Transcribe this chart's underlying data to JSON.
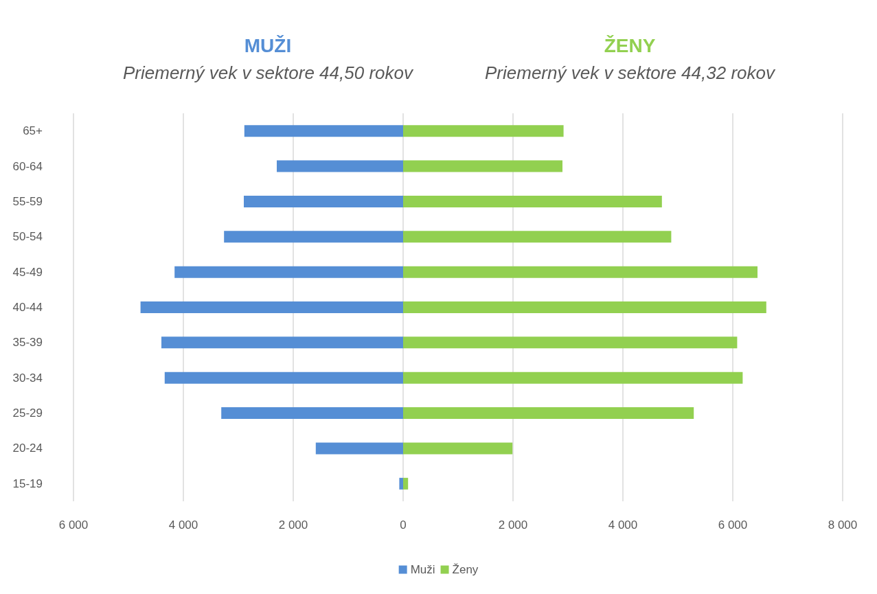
{
  "chart_data": {
    "type": "bar",
    "orientation": "horizontal",
    "categories": [
      "65+",
      "60-64",
      "55-59",
      "50-54",
      "45-49",
      "40-44",
      "35-39",
      "30-34",
      "25-29",
      "20-24",
      "15-19"
    ],
    "series": [
      {
        "name": "Muži",
        "color": "#558ed5",
        "values": [
          -2890,
          -2300,
          -2900,
          -3260,
          -4160,
          -4780,
          -4400,
          -4340,
          -3310,
          -1590,
          -70
        ]
      },
      {
        "name": "Ženy",
        "color": "#92d050",
        "values": [
          2920,
          2900,
          4710,
          4880,
          6450,
          6610,
          6080,
          6180,
          5290,
          1990,
          90
        ]
      }
    ],
    "xlim": [
      -6000,
      8000
    ],
    "xticks": [
      {
        "value": -6000,
        "label": "6 000"
      },
      {
        "value": -4000,
        "label": "4 000"
      },
      {
        "value": -2000,
        "label": "2 000"
      },
      0,
      {
        "value": 2000,
        "label": "2 000"
      },
      {
        "value": 4000,
        "label": "4 000"
      },
      {
        "value": 6000,
        "label": "6 000"
      },
      {
        "value": 8000,
        "label": "8 000"
      }
    ],
    "grid": "x",
    "legend": "bottom",
    "stacked": true,
    "annotations": [
      "MUŽI",
      "Priemerný vek v sektore 44,50 rokov",
      "ŽENY",
      "Priemerný vek v sektore 44,32 rokov"
    ]
  }
}
